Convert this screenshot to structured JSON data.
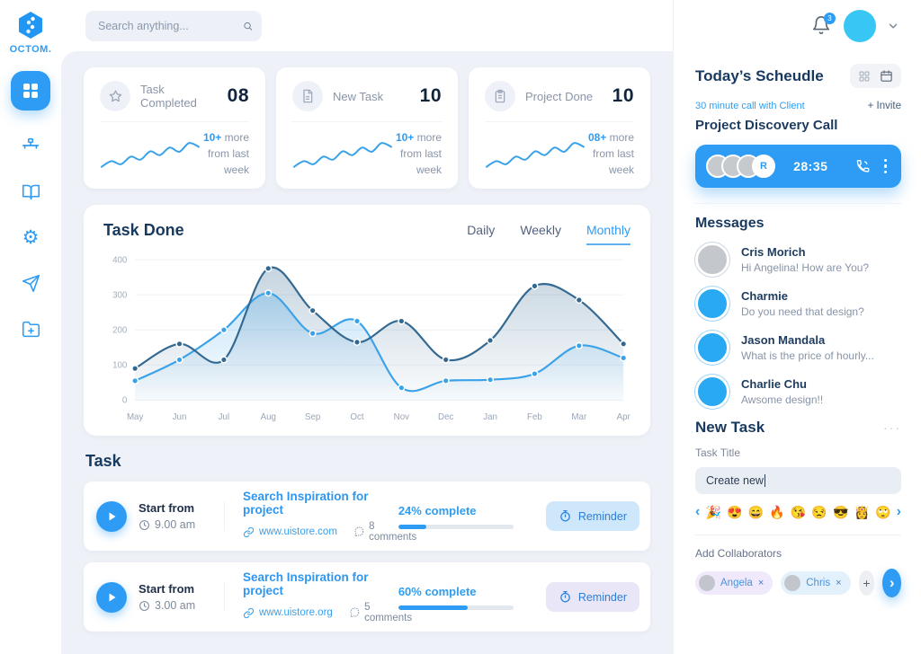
{
  "colors": {
    "accent": "#2e9cf4",
    "cyan_avatar": "#38c6f4",
    "dark_text": "#17395e",
    "gray_text": "#8a95a8",
    "chart_dark": "#336890",
    "chart_light": "#39a2e9",
    "reminder_blue_bg": "#cfe7fb",
    "reminder_lavender_bg": "#e9e6f8",
    "chip_lavender": "#efe9fb",
    "chip_blue": "#e3f1fc"
  },
  "brand": {
    "name": "OCTOM."
  },
  "header": {
    "search_placeholder": "Search anything...",
    "notification_count": "3"
  },
  "sidebar": {
    "items": [
      "dashboard",
      "tools",
      "library",
      "settings",
      "send",
      "add-folder"
    ]
  },
  "stats": {
    "cards": [
      {
        "label": "Task Completed",
        "value": "08",
        "delta": "10+",
        "delta_suffix": "more",
        "note": "from last week"
      },
      {
        "label": "New Task",
        "value": "10",
        "delta": "10+",
        "delta_suffix": "more",
        "note": "from last week"
      },
      {
        "label": "Project Done",
        "value": "10",
        "delta": "08+",
        "delta_suffix": "more",
        "note": "from last week"
      }
    ]
  },
  "sparkline": [
    15,
    30,
    22,
    42,
    34,
    56,
    46,
    66,
    55,
    78,
    68
  ],
  "chart_data": {
    "type": "line",
    "title": "Task Done",
    "tabs": [
      "Daily",
      "Weekly",
      "Monthly"
    ],
    "active_tab": "Monthly",
    "categories": [
      "May",
      "Jun",
      "Jul",
      "Aug",
      "Sep",
      "Oct",
      "Nov",
      "Dec",
      "Jan",
      "Feb",
      "Mar",
      "Apr"
    ],
    "series": [
      {
        "name": "dark",
        "color": "#336890",
        "values": [
          90,
          160,
          115,
          375,
          255,
          165,
          225,
          115,
          170,
          325,
          285,
          160
        ]
      },
      {
        "name": "light",
        "color": "#39a2e9",
        "values": [
          55,
          115,
          200,
          305,
          190,
          225,
          35,
          55,
          58,
          75,
          155,
          120
        ]
      }
    ],
    "ylim": [
      0,
      400
    ],
    "yticks": [
      0,
      100,
      200,
      300,
      400
    ],
    "grid": true,
    "legend": false
  },
  "tasks": {
    "heading": "Task",
    "rows": [
      {
        "start_label": "Start from",
        "time": "9.00 am",
        "title": "Search Inspiration for project",
        "link": "www.uistore.com",
        "comments": "8 comments",
        "percent": 24,
        "percent_label": "24% complete",
        "reminder_label": "Reminder"
      },
      {
        "start_label": "Start from",
        "time": "3.00 am",
        "title": "Search Inspiration for project",
        "link": "www.uistore.org",
        "comments": "5 comments",
        "percent": 60,
        "percent_label": "60% complete",
        "reminder_label": "Reminder"
      }
    ]
  },
  "schedule": {
    "title": "Today’s Scheudle",
    "subtitle": "30 minute call with Client",
    "invite_label": "+ Invite",
    "call_title": "Project Discovery Call",
    "timer": "28:35",
    "avatar_letter": "R"
  },
  "messages": {
    "heading": "Messages",
    "items": [
      {
        "name": "Cris Morich",
        "text": "Hi Angelina! How are You?"
      },
      {
        "name": "Charmie",
        "text": "Do you need that design?"
      },
      {
        "name": "Jason Mandala",
        "text": "What is the price of hourly..."
      },
      {
        "name": "Charlie Chu",
        "text": "Awsome design!!"
      }
    ]
  },
  "new_task": {
    "heading": "New Task",
    "more_icon": "···",
    "title_label": "Task Title",
    "input_value": "Create new",
    "prev_icon": "‹",
    "next_icon": "›",
    "emojis": [
      "🎉",
      "😍",
      "😄",
      "🔥",
      "😘",
      "😒",
      "😎",
      "👸",
      "🙄"
    ],
    "collaborators_label": "Add Collaborators",
    "collaborators": [
      {
        "name": "Angela"
      },
      {
        "name": "Chris"
      }
    ],
    "remove_icon": "×",
    "add_icon": "+",
    "submit_icon": "›"
  }
}
